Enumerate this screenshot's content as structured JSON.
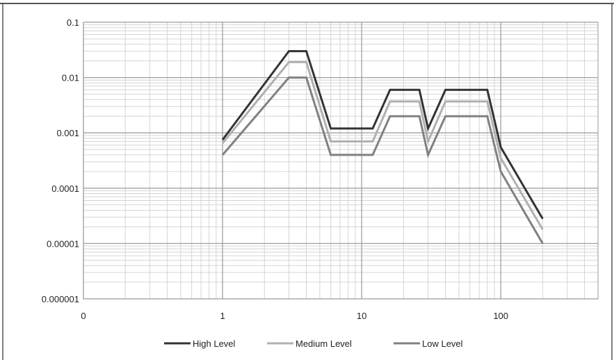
{
  "chart_data": {
    "type": "line",
    "x_scale": "log",
    "y_scale": "log",
    "xlim": [
      0.1,
      500
    ],
    "ylim": [
      1e-06,
      0.1
    ],
    "grid": true,
    "legend_position": "bottom",
    "x_ticks": [
      {
        "value": 0.1,
        "label": "0"
      },
      {
        "value": 1,
        "label": "1"
      },
      {
        "value": 10,
        "label": "10"
      },
      {
        "value": 100,
        "label": "100"
      }
    ],
    "y_ticks": [
      {
        "value": 0.1,
        "label": "0.1"
      },
      {
        "value": 0.01,
        "label": "0.01"
      },
      {
        "value": 0.001,
        "label": "0.001"
      },
      {
        "value": 0.0001,
        "label": "0.0001"
      },
      {
        "value": 1e-05,
        "label": "0.00001"
      },
      {
        "value": 1e-06,
        "label": "0.000001"
      }
    ],
    "series": [
      {
        "name": "High Level",
        "color": "#333333",
        "points": [
          [
            1,
            0.00075
          ],
          [
            3,
            0.03
          ],
          [
            4,
            0.03
          ],
          [
            6,
            0.0012
          ],
          [
            12,
            0.0012
          ],
          [
            16,
            0.006
          ],
          [
            26,
            0.006
          ],
          [
            30,
            0.0012
          ],
          [
            40,
            0.006
          ],
          [
            80,
            0.006
          ],
          [
            100,
            0.00055
          ],
          [
            200,
            2.8e-05
          ]
        ]
      },
      {
        "name": "Medium Level",
        "color": "#b0b0b0",
        "points": [
          [
            1,
            0.00065
          ],
          [
            3,
            0.019
          ],
          [
            4,
            0.019
          ],
          [
            6,
            0.0007
          ],
          [
            12,
            0.0007
          ],
          [
            16,
            0.0037
          ],
          [
            26,
            0.0037
          ],
          [
            30,
            0.0007
          ],
          [
            40,
            0.0037
          ],
          [
            80,
            0.0037
          ],
          [
            100,
            0.00035
          ],
          [
            200,
            1.8e-05
          ]
        ]
      },
      {
        "name": "Low Level",
        "color": "#808080",
        "points": [
          [
            1,
            0.0004
          ],
          [
            3,
            0.01
          ],
          [
            4,
            0.01
          ],
          [
            6,
            0.0004
          ],
          [
            12,
            0.0004
          ],
          [
            16,
            0.002
          ],
          [
            26,
            0.002
          ],
          [
            30,
            0.0004
          ],
          [
            40,
            0.002
          ],
          [
            80,
            0.002
          ],
          [
            100,
            0.0002
          ],
          [
            200,
            1e-05
          ]
        ]
      }
    ]
  }
}
